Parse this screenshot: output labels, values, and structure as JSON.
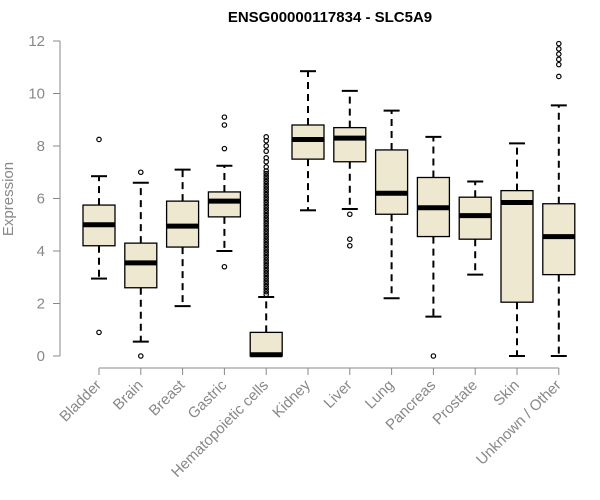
{
  "chart_data": {
    "type": "boxplot",
    "title": "ENSG00000117834 - SLC5A9",
    "xlabel": "",
    "ylabel": "Expression",
    "ylim": [
      0,
      12
    ],
    "yticks": [
      0,
      2,
      4,
      6,
      8,
      10,
      12
    ],
    "box_color": "#EEE8D0",
    "categories": [
      "Bladder",
      "Brain",
      "Breast",
      "Gastric",
      "Hematopoietic cells",
      "Kidney",
      "Liver",
      "Lung",
      "Pancreas",
      "Prostate",
      "Skin",
      "Unknown / Other"
    ],
    "series": [
      {
        "name": "Bladder",
        "whisker_low": 2.95,
        "q1": 4.2,
        "median": 5.0,
        "q3": 5.75,
        "whisker_high": 6.85,
        "outliers": [
          8.25,
          0.9
        ]
      },
      {
        "name": "Brain",
        "whisker_low": 0.55,
        "q1": 2.6,
        "median": 3.55,
        "q3": 4.3,
        "whisker_high": 6.6,
        "outliers": [
          7.0,
          0.0
        ]
      },
      {
        "name": "Breast",
        "whisker_low": 1.9,
        "q1": 4.15,
        "median": 4.95,
        "q3": 5.9,
        "whisker_high": 7.1,
        "outliers": []
      },
      {
        "name": "Gastric",
        "whisker_low": 4.0,
        "q1": 5.3,
        "median": 5.9,
        "q3": 6.25,
        "whisker_high": 7.25,
        "outliers": [
          9.1,
          8.8,
          7.9,
          3.4
        ]
      },
      {
        "name": "Hematopoietic cells",
        "whisker_low": 0.0,
        "q1": 0.0,
        "median": 0.05,
        "q3": 0.9,
        "whisker_high": 2.25,
        "outliers": [
          2.35,
          2.45,
          2.55,
          2.65,
          2.75,
          2.85,
          2.95,
          3.05,
          3.15,
          3.25,
          3.35,
          3.45,
          3.55,
          3.65,
          3.75,
          3.85,
          3.95,
          4.05,
          4.15,
          4.25,
          4.35,
          4.45,
          4.55,
          4.65,
          4.75,
          4.85,
          4.95,
          5.05,
          5.15,
          5.25,
          5.35,
          5.45,
          5.55,
          5.65,
          5.75,
          5.85,
          5.95,
          6.05,
          6.15,
          6.25,
          6.35,
          6.45,
          6.55,
          6.65,
          6.75,
          6.85,
          6.95,
          7.05,
          7.2,
          7.4,
          7.55,
          7.8,
          8.0,
          8.2,
          8.35
        ]
      },
      {
        "name": "Kidney",
        "whisker_low": 5.55,
        "q1": 7.5,
        "median": 8.25,
        "q3": 8.8,
        "whisker_high": 10.85,
        "outliers": []
      },
      {
        "name": "Liver",
        "whisker_low": 5.6,
        "q1": 7.4,
        "median": 8.3,
        "q3": 8.7,
        "whisker_high": 10.1,
        "outliers": [
          5.4,
          4.45,
          4.2
        ]
      },
      {
        "name": "Lung",
        "whisker_low": 2.2,
        "q1": 5.4,
        "median": 6.2,
        "q3": 7.85,
        "whisker_high": 9.35,
        "outliers": []
      },
      {
        "name": "Pancreas",
        "whisker_low": 1.5,
        "q1": 4.55,
        "median": 5.65,
        "q3": 6.8,
        "whisker_high": 8.35,
        "outliers": [
          0.0
        ]
      },
      {
        "name": "Prostate",
        "whisker_low": 3.1,
        "q1": 4.45,
        "median": 5.35,
        "q3": 6.05,
        "whisker_high": 6.65,
        "outliers": []
      },
      {
        "name": "Skin",
        "whisker_low": 0.0,
        "q1": 2.05,
        "median": 5.85,
        "q3": 6.3,
        "whisker_high": 8.1,
        "outliers": []
      },
      {
        "name": "Unknown / Other",
        "whisker_low": 0.0,
        "q1": 3.1,
        "median": 4.55,
        "q3": 5.8,
        "whisker_high": 9.55,
        "outliers": [
          11.9,
          11.7,
          11.5,
          11.3,
          11.1,
          10.65
        ]
      }
    ]
  }
}
